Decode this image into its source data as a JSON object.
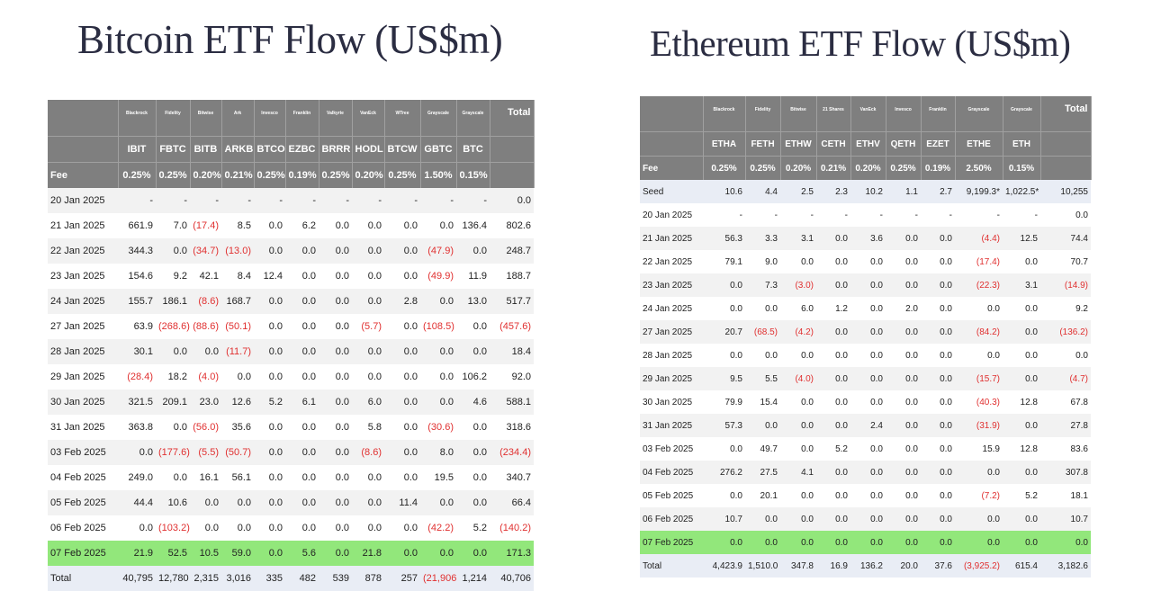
{
  "btc": {
    "title": "Bitcoin ETF Flow (US$m)",
    "providers": [
      "Blackrock",
      "Fidelity",
      "Bitwise",
      "Ark",
      "Invesco",
      "Franklin",
      "Valkyrie",
      "VanEck",
      "WTree",
      "Grayscale",
      "Grayscale",
      "Total"
    ],
    "tickers": [
      "IBIT",
      "FBTC",
      "BITB",
      "ARKB",
      "BTCO",
      "EZBC",
      "BRRR",
      "HODL",
      "BTCW",
      "GBTC",
      "BTC",
      ""
    ],
    "fee": {
      "label": "Fee",
      "values": [
        "0.25%",
        "0.25%",
        "0.20%",
        "0.21%",
        "0.25%",
        "0.19%",
        "0.25%",
        "0.20%",
        "0.25%",
        "1.50%",
        "0.15%",
        ""
      ]
    },
    "rows": [
      {
        "date": "20 Jan 2025",
        "values": [
          "-",
          "-",
          "-",
          "-",
          "-",
          "-",
          "-",
          "-",
          "-",
          "-",
          "-",
          "0.0"
        ]
      },
      {
        "date": "21 Jan 2025",
        "values": [
          "661.9",
          "7.0",
          "(17.4)",
          "8.5",
          "0.0",
          "6.2",
          "0.0",
          "0.0",
          "0.0",
          "0.0",
          "136.4",
          "802.6"
        ]
      },
      {
        "date": "22 Jan 2025",
        "values": [
          "344.3",
          "0.0",
          "(34.7)",
          "(13.0)",
          "0.0",
          "0.0",
          "0.0",
          "0.0",
          "0.0",
          "(47.9)",
          "0.0",
          "248.7"
        ]
      },
      {
        "date": "23 Jan 2025",
        "values": [
          "154.6",
          "9.2",
          "42.1",
          "8.4",
          "12.4",
          "0.0",
          "0.0",
          "0.0",
          "0.0",
          "(49.9)",
          "11.9",
          "188.7"
        ]
      },
      {
        "date": "24 Jan 2025",
        "values": [
          "155.7",
          "186.1",
          "(8.6)",
          "168.7",
          "0.0",
          "0.0",
          "0.0",
          "0.0",
          "2.8",
          "0.0",
          "13.0",
          "517.7"
        ]
      },
      {
        "date": "27 Jan 2025",
        "values": [
          "63.9",
          "(268.6)",
          "(88.6)",
          "(50.1)",
          "0.0",
          "0.0",
          "0.0",
          "(5.7)",
          "0.0",
          "(108.5)",
          "0.0",
          "(457.6)"
        ]
      },
      {
        "date": "28 Jan 2025",
        "values": [
          "30.1",
          "0.0",
          "0.0",
          "(11.7)",
          "0.0",
          "0.0",
          "0.0",
          "0.0",
          "0.0",
          "0.0",
          "0.0",
          "18.4"
        ]
      },
      {
        "date": "29 Jan 2025",
        "values": [
          "(28.4)",
          "18.2",
          "(4.0)",
          "0.0",
          "0.0",
          "0.0",
          "0.0",
          "0.0",
          "0.0",
          "0.0",
          "106.2",
          "92.0"
        ]
      },
      {
        "date": "30 Jan 2025",
        "values": [
          "321.5",
          "209.1",
          "23.0",
          "12.6",
          "5.2",
          "6.1",
          "0.0",
          "6.0",
          "0.0",
          "0.0",
          "4.6",
          "588.1"
        ]
      },
      {
        "date": "31 Jan 2025",
        "values": [
          "363.8",
          "0.0",
          "(56.0)",
          "35.6",
          "0.0",
          "0.0",
          "0.0",
          "5.8",
          "0.0",
          "(30.6)",
          "0.0",
          "318.6"
        ]
      },
      {
        "date": "03 Feb 2025",
        "values": [
          "0.0",
          "(177.6)",
          "(5.5)",
          "(50.7)",
          "0.0",
          "0.0",
          "0.0",
          "(8.6)",
          "0.0",
          "8.0",
          "0.0",
          "(234.4)"
        ]
      },
      {
        "date": "04 Feb 2025",
        "values": [
          "249.0",
          "0.0",
          "16.1",
          "56.1",
          "0.0",
          "0.0",
          "0.0",
          "0.0",
          "0.0",
          "19.5",
          "0.0",
          "340.7"
        ]
      },
      {
        "date": "05 Feb 2025",
        "values": [
          "44.4",
          "10.6",
          "0.0",
          "0.0",
          "0.0",
          "0.0",
          "0.0",
          "0.0",
          "11.4",
          "0.0",
          "0.0",
          "66.4"
        ]
      },
      {
        "date": "06 Feb 2025",
        "values": [
          "0.0",
          "(103.2)",
          "0.0",
          "0.0",
          "0.0",
          "0.0",
          "0.0",
          "0.0",
          "0.0",
          "(42.2)",
          "5.2",
          "(140.2)"
        ]
      },
      {
        "date": "07 Feb 2025",
        "values": [
          "21.9",
          "52.5",
          "10.5",
          "59.0",
          "0.0",
          "5.6",
          "0.0",
          "21.8",
          "0.0",
          "0.0",
          "0.0",
          "171.3"
        ],
        "highlight": true
      },
      {
        "date": "Total",
        "values": [
          "40,795",
          "12,780",
          "2,315",
          "3,016",
          "335",
          "482",
          "539",
          "878",
          "257",
          "(21,906)",
          "1,214",
          "40,706"
        ],
        "total": true
      }
    ]
  },
  "eth": {
    "title": "Ethereum ETF Flow (US$m)",
    "providers": [
      "Blackrock",
      "Fidelity",
      "Bitwise",
      "21 Shares",
      "VanEck",
      "Invesco",
      "Franklin",
      "Grayscale",
      "Grayscale",
      "Total"
    ],
    "tickers": [
      "ETHA",
      "FETH",
      "ETHW",
      "CETH",
      "ETHV",
      "QETH",
      "EZET",
      "ETHE",
      "ETH",
      ""
    ],
    "fee": {
      "label": "Fee",
      "values": [
        "0.25%",
        "0.25%",
        "0.20%",
        "0.21%",
        "0.20%",
        "0.25%",
        "0.19%",
        "2.50%",
        "0.15%",
        ""
      ]
    },
    "rows": [
      {
        "date": "Seed",
        "values": [
          "10.6",
          "4.4",
          "2.5",
          "2.3",
          "10.2",
          "1.1",
          "2.7",
          "9,199.3*",
          "1,022.5*",
          "10,255"
        ],
        "seed": true
      },
      {
        "date": "20 Jan 2025",
        "values": [
          "-",
          "-",
          "-",
          "-",
          "-",
          "-",
          "-",
          "-",
          "-",
          "0.0"
        ]
      },
      {
        "date": "21 Jan 2025",
        "values": [
          "56.3",
          "3.3",
          "3.1",
          "0.0",
          "3.6",
          "0.0",
          "0.0",
          "(4.4)",
          "12.5",
          "74.4"
        ]
      },
      {
        "date": "22 Jan 2025",
        "values": [
          "79.1",
          "9.0",
          "0.0",
          "0.0",
          "0.0",
          "0.0",
          "0.0",
          "(17.4)",
          "0.0",
          "70.7"
        ]
      },
      {
        "date": "23 Jan 2025",
        "values": [
          "0.0",
          "7.3",
          "(3.0)",
          "0.0",
          "0.0",
          "0.0",
          "0.0",
          "(22.3)",
          "3.1",
          "(14.9)"
        ]
      },
      {
        "date": "24 Jan 2025",
        "values": [
          "0.0",
          "0.0",
          "6.0",
          "1.2",
          "0.0",
          "2.0",
          "0.0",
          "0.0",
          "0.0",
          "9.2"
        ]
      },
      {
        "date": "27 Jan 2025",
        "values": [
          "20.7",
          "(68.5)",
          "(4.2)",
          "0.0",
          "0.0",
          "0.0",
          "0.0",
          "(84.2)",
          "0.0",
          "(136.2)"
        ]
      },
      {
        "date": "28 Jan 2025",
        "values": [
          "0.0",
          "0.0",
          "0.0",
          "0.0",
          "0.0",
          "0.0",
          "0.0",
          "0.0",
          "0.0",
          "0.0"
        ]
      },
      {
        "date": "29 Jan 2025",
        "values": [
          "9.5",
          "5.5",
          "(4.0)",
          "0.0",
          "0.0",
          "0.0",
          "0.0",
          "(15.7)",
          "0.0",
          "(4.7)"
        ]
      },
      {
        "date": "30 Jan 2025",
        "values": [
          "79.9",
          "15.4",
          "0.0",
          "0.0",
          "0.0",
          "0.0",
          "0.0",
          "(40.3)",
          "12.8",
          "67.8"
        ]
      },
      {
        "date": "31 Jan 2025",
        "values": [
          "57.3",
          "0.0",
          "0.0",
          "0.0",
          "2.4",
          "0.0",
          "0.0",
          "(31.9)",
          "0.0",
          "27.8"
        ]
      },
      {
        "date": "03 Feb 2025",
        "values": [
          "0.0",
          "49.7",
          "0.0",
          "5.2",
          "0.0",
          "0.0",
          "0.0",
          "15.9",
          "12.8",
          "83.6"
        ]
      },
      {
        "date": "04 Feb 2025",
        "values": [
          "276.2",
          "27.5",
          "4.1",
          "0.0",
          "0.0",
          "0.0",
          "0.0",
          "0.0",
          "0.0",
          "307.8"
        ]
      },
      {
        "date": "05 Feb 2025",
        "values": [
          "0.0",
          "20.1",
          "0.0",
          "0.0",
          "0.0",
          "0.0",
          "0.0",
          "(7.2)",
          "5.2",
          "18.1"
        ]
      },
      {
        "date": "06 Feb 2025",
        "values": [
          "10.7",
          "0.0",
          "0.0",
          "0.0",
          "0.0",
          "0.0",
          "0.0",
          "0.0",
          "0.0",
          "10.7"
        ]
      },
      {
        "date": "07 Feb 2025",
        "values": [
          "0.0",
          "0.0",
          "0.0",
          "0.0",
          "0.0",
          "0.0",
          "0.0",
          "0.0",
          "0.0",
          "0.0"
        ],
        "highlight": true
      },
      {
        "date": "Total",
        "values": [
          "4,423.9",
          "1,510.0",
          "347.8",
          "16.9",
          "136.2",
          "20.0",
          "37.6",
          "(3,925.2)",
          "615.4",
          "3,182.6"
        ],
        "total": true
      }
    ]
  }
}
